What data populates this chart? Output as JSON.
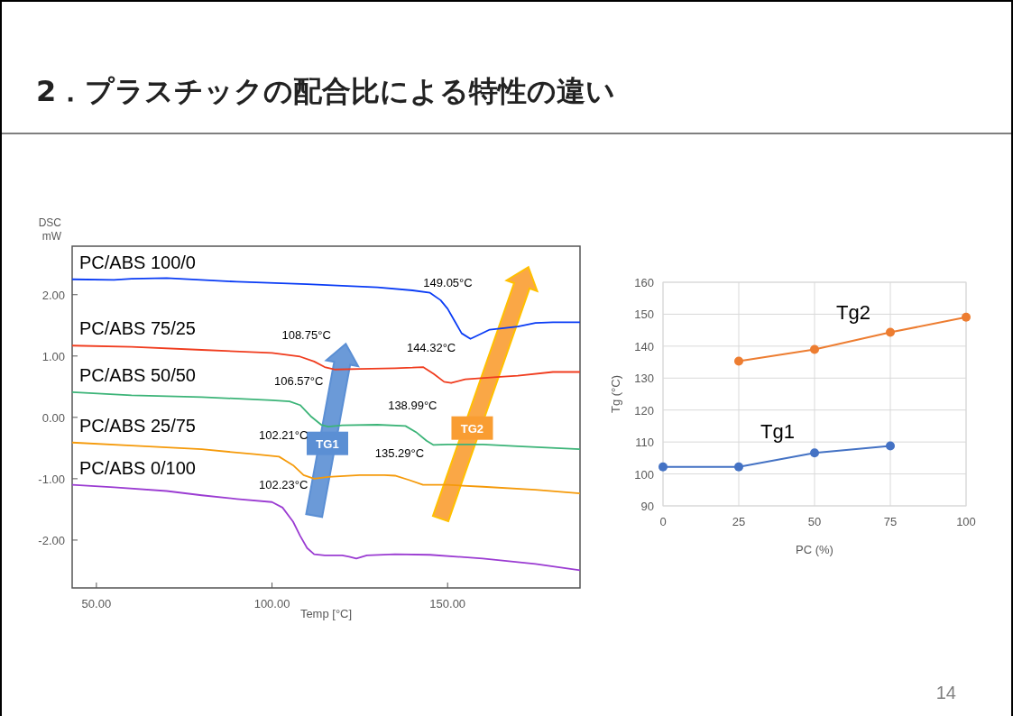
{
  "chart_data": [
    {
      "type": "line",
      "title": "2．プラスチックの配合比による特性の違い",
      "xlabel": "Temp [°C]",
      "ylabel": "DSC\nmW",
      "xlim": [
        43.1,
        187.7
      ],
      "ylim": [
        -2.78,
        2.79
      ],
      "xticks": [
        {
          "value": 50,
          "label": "50.00"
        },
        {
          "value": 100,
          "label": "100.00"
        },
        {
          "value": 150,
          "label": "150.00"
        }
      ],
      "yticks": [
        {
          "value": 2,
          "label": "2.00"
        },
        {
          "value": 1,
          "label": "1.00"
        },
        {
          "value": 0,
          "label": "0.00"
        },
        {
          "value": -1,
          "label": "-1.00"
        },
        {
          "value": -2,
          "label": "-2.00"
        }
      ],
      "grid": false,
      "marker": "none",
      "line_style": "solid",
      "series": [
        {
          "name": "PC/ABS 100/0",
          "color": "#0a3cf5",
          "x": [
            43.1,
            55,
            60,
            70,
            90,
            110,
            130,
            140,
            145,
            148,
            150,
            152,
            154,
            156.5,
            158,
            162,
            170,
            175,
            180,
            187.7
          ],
          "values": [
            2.25,
            2.24,
            2.26,
            2.27,
            2.21,
            2.17,
            2.12,
            2.07,
            2.03,
            1.91,
            1.77,
            1.57,
            1.37,
            1.28,
            1.32,
            1.43,
            1.48,
            1.54,
            1.55,
            1.55
          ]
        },
        {
          "name": "PC/ABS 75/25",
          "color": "#f03c1e",
          "x": [
            43.1,
            60,
            80,
            100,
            108,
            112,
            115,
            118,
            125,
            135,
            140,
            143,
            146,
            149,
            151,
            155,
            165,
            170,
            180,
            187.7
          ],
          "values": [
            1.17,
            1.15,
            1.1,
            1.05,
            0.99,
            0.91,
            0.82,
            0.78,
            0.79,
            0.8,
            0.81,
            0.82,
            0.71,
            0.58,
            0.56,
            0.62,
            0.66,
            0.68,
            0.74,
            0.74
          ]
        },
        {
          "name": "PC/ABS 50/50",
          "color": "#3cb478",
          "x": [
            43.1,
            60,
            80,
            100,
            105,
            108,
            111,
            114,
            116,
            120,
            130,
            138,
            141,
            144,
            146,
            150,
            160,
            170,
            187.7
          ],
          "values": [
            0.41,
            0.36,
            0.33,
            0.28,
            0.26,
            0.2,
            0.02,
            -0.12,
            -0.15,
            -0.13,
            -0.12,
            -0.14,
            -0.24,
            -0.38,
            -0.45,
            -0.44,
            -0.44,
            -0.47,
            -0.52
          ]
        },
        {
          "name": "PC/ABS 25/75",
          "color": "#f59a0a",
          "x": [
            43.1,
            60,
            80,
            95,
            102,
            106,
            109,
            112,
            116,
            125,
            132,
            135,
            139,
            143,
            150,
            160,
            175,
            187.7
          ],
          "values": [
            -0.41,
            -0.46,
            -0.52,
            -0.6,
            -0.64,
            -0.78,
            -0.94,
            -1.0,
            -0.97,
            -0.94,
            -0.94,
            -0.95,
            -1.02,
            -1.1,
            -1.1,
            -1.13,
            -1.18,
            -1.24
          ]
        },
        {
          "name": "PC/ABS 0/100",
          "color": "#9b3cd2",
          "x": [
            43.1,
            55,
            70,
            80,
            90,
            100,
            103,
            106,
            108,
            110,
            112,
            115,
            120,
            122,
            124,
            127,
            135,
            145,
            160,
            175,
            187.7
          ],
          "values": [
            -1.1,
            -1.14,
            -1.2,
            -1.27,
            -1.33,
            -1.38,
            -1.47,
            -1.7,
            -1.93,
            -2.13,
            -2.23,
            -2.25,
            -2.25,
            -2.27,
            -2.3,
            -2.25,
            -2.23,
            -2.24,
            -2.3,
            -2.39,
            -2.49
          ]
        }
      ],
      "annotations": [
        {
          "text": "149.05°C",
          "x": 149.05,
          "y": 1.84
        },
        {
          "text": "108.75°C",
          "x": 108.75,
          "y": 0.975
        },
        {
          "text": "144.32°C",
          "x": 144.32,
          "y": 0.77
        },
        {
          "text": "106.57°C",
          "x": 106.57,
          "y": 0.23
        },
        {
          "text": "138.99°C",
          "x": 138.99,
          "y": -0.17
        },
        {
          "text": "102.21°C",
          "x": 102.21,
          "y": -0.65
        },
        {
          "text": "135.29°C",
          "x": 135.29,
          "y": -0.95
        },
        {
          "text": "102.23°C",
          "x": 102.23,
          "y": -1.45
        },
        "TG1",
        "TG2",
        "14"
      ]
    },
    {
      "type": "line",
      "xlabel": "PC (%)",
      "ylabel": "Tg (°C)",
      "x": [
        0,
        25,
        50,
        75,
        100
      ],
      "xlim": [
        0,
        100
      ],
      "xticks": [
        0,
        25,
        50,
        75,
        100
      ],
      "ylim": [
        90,
        160
      ],
      "yticks": [
        90,
        100,
        110,
        120,
        130,
        140,
        150,
        160
      ],
      "grid": true,
      "marker": "circle",
      "line_style": "solid",
      "series": [
        {
          "name": "Tg1",
          "color": "#4472c4",
          "values": [
            102.23,
            102.21,
            106.57,
            108.75,
            null
          ]
        },
        {
          "name": "Tg2",
          "color": "#ed7d31",
          "values": [
            null,
            135.29,
            138.99,
            144.32,
            149.05
          ]
        }
      ]
    }
  ]
}
